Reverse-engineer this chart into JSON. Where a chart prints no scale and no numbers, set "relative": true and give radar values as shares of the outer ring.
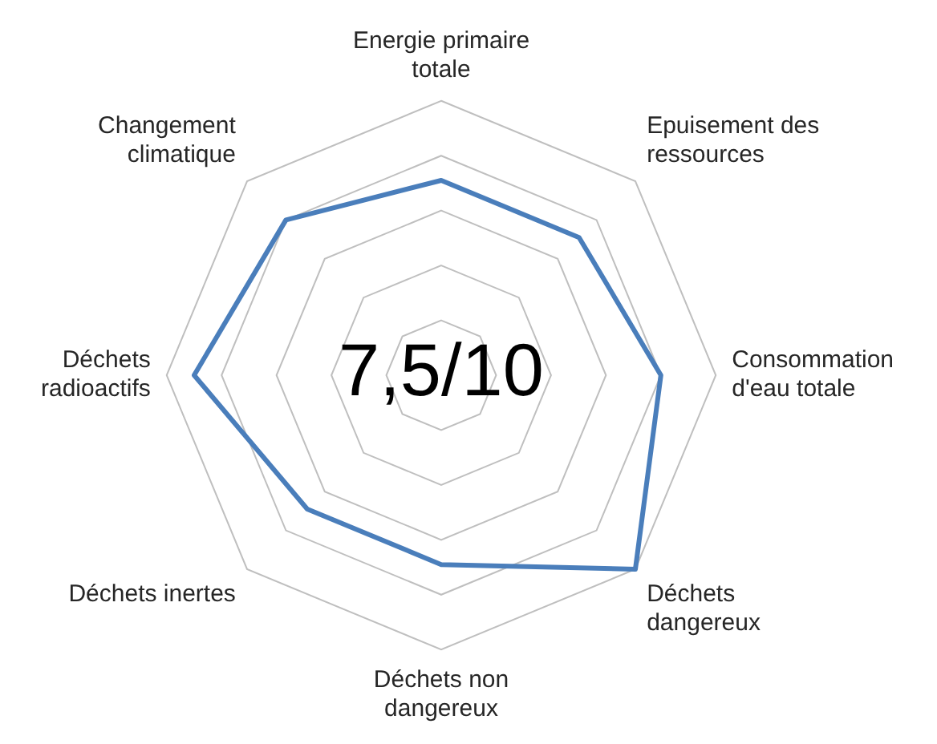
{
  "chart_data": {
    "type": "radar",
    "relative": true,
    "grid": true,
    "marker": "none",
    "categories": [
      "Energie primaire totale",
      "Epuisement des ressources",
      "Consommation d'eau totale",
      "Déchets dangereux",
      "Déchets non dangereux",
      "Déchets inertes",
      "Déchets radioactifs",
      "Changement climatique"
    ],
    "series": [
      {
        "color": "#4a7ebb",
        "values": [
          0.71,
          0.71,
          0.8,
          1.0,
          0.69,
          0.69,
          0.9,
          0.8
        ]
      }
    ],
    "annotations": [
      "7,5/10"
    ]
  }
}
